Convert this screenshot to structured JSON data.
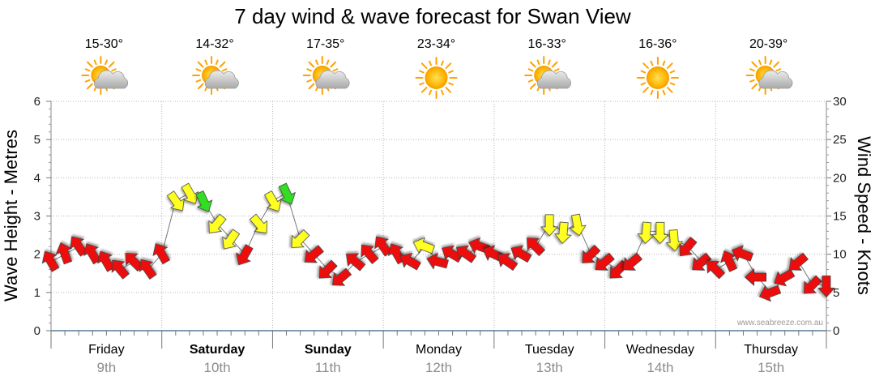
{
  "chart_data": {
    "type": "line",
    "title": "7 day wind & wave forecast for Swan View",
    "ylabel_left": "Wave Height - Metres",
    "ylabel_right": "Wind Speed - Knots",
    "ylim_left": [
      0,
      6
    ],
    "ylim_right": [
      0,
      30
    ],
    "yticks_left": [
      "0",
      "1",
      "2",
      "3",
      "4",
      "5",
      "6"
    ],
    "yticks_right": [
      "0",
      "5",
      "10",
      "15",
      "20",
      "25",
      "30"
    ],
    "credit": "www.seabreeze.com.au",
    "days": [
      {
        "day": "Friday",
        "date": "9th",
        "temp": "15-30°",
        "icon": "partly-cloudy-icon",
        "bold": false
      },
      {
        "day": "Saturday",
        "date": "10th",
        "temp": "14-32°",
        "icon": "partly-cloudy-icon",
        "bold": true
      },
      {
        "day": "Sunday",
        "date": "11th",
        "temp": "17-35°",
        "icon": "partly-cloudy-icon",
        "bold": true
      },
      {
        "day": "Monday",
        "date": "12th",
        "temp": "23-34°",
        "icon": "sunny-icon",
        "bold": false
      },
      {
        "day": "Tuesday",
        "date": "13th",
        "temp": "16-33°",
        "icon": "partly-cloudy-icon",
        "bold": false
      },
      {
        "day": "Wednesday",
        "date": "14th",
        "temp": "16-36°",
        "icon": "sunny-icon",
        "bold": false
      },
      {
        "day": "Thursday",
        "date": "15th",
        "temp": "20-39°",
        "icon": "partly-cloudy-icon",
        "bold": false
      }
    ],
    "series": [
      {
        "name": "Wind Speed",
        "unit": "knots",
        "x_hours": [
          0,
          3,
          6,
          9,
          12,
          15,
          18,
          21,
          24,
          27,
          30,
          33,
          36,
          39,
          42,
          45,
          48,
          51,
          54,
          57,
          60,
          63,
          66,
          69,
          72,
          75,
          78,
          81,
          84,
          87,
          90,
          93,
          96,
          99,
          102,
          105,
          108,
          111,
          114,
          117,
          120,
          123,
          126,
          129,
          132,
          135,
          138,
          141,
          144,
          147,
          150,
          153,
          156,
          159,
          162,
          165,
          168
        ],
        "values": [
          9,
          10,
          11,
          10,
          9,
          8,
          9,
          8,
          10,
          17,
          18,
          17,
          14,
          12,
          10,
          14,
          17,
          18,
          12,
          10,
          8,
          7,
          9,
          10,
          11,
          10,
          9,
          11,
          9,
          10,
          10,
          11,
          10,
          9,
          10,
          11,
          14,
          13,
          14,
          10,
          9,
          8,
          9,
          13,
          13,
          12,
          11,
          9,
          8,
          9,
          10,
          7,
          5,
          7,
          9,
          6,
          6
        ],
        "direction_deg": [
          240,
          250,
          235,
          240,
          240,
          230,
          225,
          235,
          240,
          55,
          60,
          65,
          130,
          125,
          120,
          50,
          60,
          65,
          135,
          140,
          135,
          140,
          220,
          230,
          235,
          240,
          210,
          200,
          195,
          210,
          215,
          200,
          205,
          215,
          210,
          225,
          90,
          95,
          80,
          135,
          140,
          135,
          140,
          95,
          90,
          85,
          130,
          140,
          225,
          245,
          200,
          180,
          160,
          150,
          140,
          135,
          90
        ],
        "colors": [
          "red",
          "red",
          "red",
          "red",
          "red",
          "red",
          "red",
          "red",
          "red",
          "yellow",
          "yellow",
          "green",
          "yellow",
          "yellow",
          "red",
          "yellow",
          "yellow",
          "green",
          "yellow",
          "red",
          "red",
          "red",
          "red",
          "red",
          "red",
          "red",
          "red",
          "yellow",
          "red",
          "red",
          "red",
          "red",
          "red",
          "red",
          "red",
          "red",
          "yellow",
          "yellow",
          "yellow",
          "red",
          "red",
          "red",
          "red",
          "yellow",
          "yellow",
          "yellow",
          "red",
          "red",
          "red",
          "red",
          "red",
          "red",
          "red",
          "red",
          "red",
          "red",
          "red"
        ]
      }
    ],
    "colors": {
      "red": "#ee1111",
      "yellow": "#ffff22",
      "green": "#33dd22",
      "line": "#777777"
    }
  }
}
